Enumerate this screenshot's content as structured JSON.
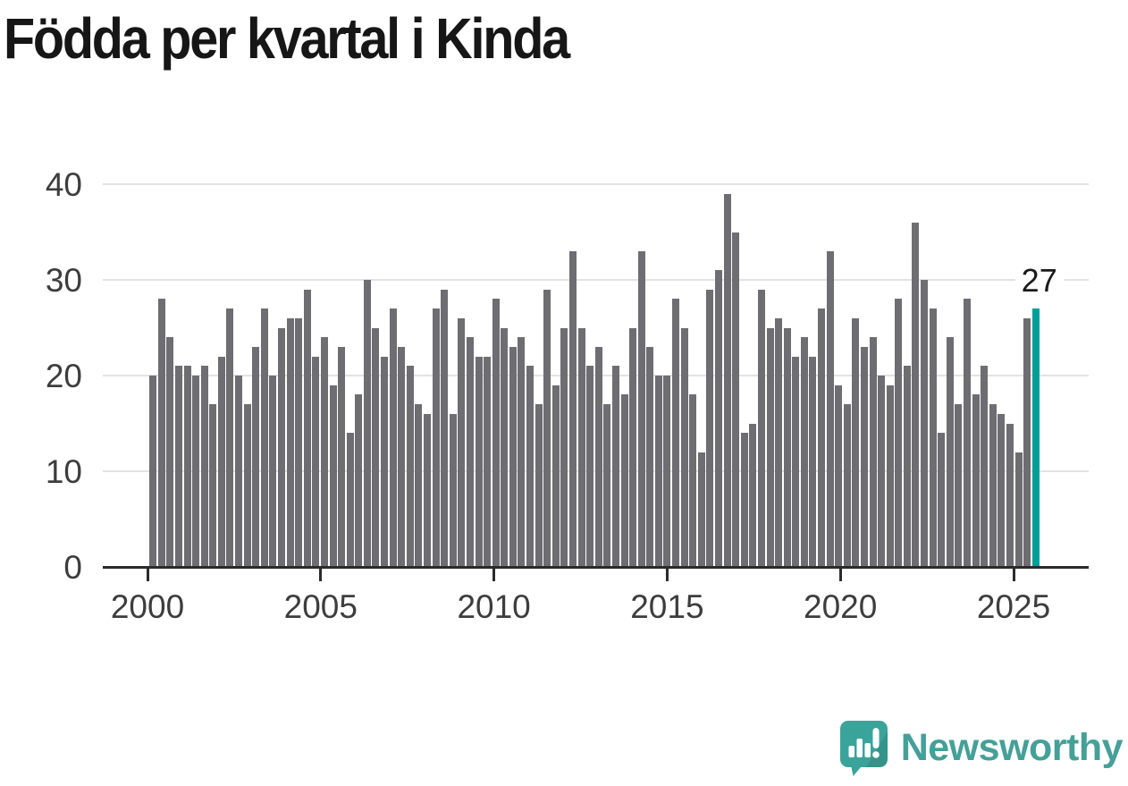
{
  "title": "Födda per kvartal i Kinda",
  "chart_data": {
    "type": "bar",
    "title": "Födda per kvartal i Kinda",
    "frequency": "quarterly",
    "start_period": "2000-Q1",
    "end_period": "2025-Q4",
    "xlabel": "",
    "ylabel": "",
    "ylim": [
      0,
      40
    ],
    "grid": "horizontal",
    "x_tick_labels": [
      "2000",
      "2005",
      "2010",
      "2015",
      "2020",
      "2025"
    ],
    "y_ticks": [
      0,
      10,
      20,
      30,
      40
    ],
    "bar_color": "#6d6d72",
    "series": [
      {
        "name": "Födda per kvartal",
        "values": [
          20,
          28,
          24,
          21,
          21,
          20,
          21,
          17,
          22,
          27,
          20,
          17,
          23,
          27,
          20,
          25,
          26,
          26,
          29,
          22,
          24,
          19,
          23,
          14,
          18,
          30,
          25,
          22,
          27,
          23,
          21,
          17,
          16,
          27,
          29,
          16,
          26,
          24,
          22,
          22,
          28,
          25,
          23,
          24,
          21,
          17,
          29,
          19,
          25,
          33,
          25,
          21,
          23,
          17,
          21,
          18,
          25,
          33,
          23,
          20,
          20,
          28,
          25,
          18,
          12,
          29,
          31,
          39,
          35,
          14,
          15,
          29,
          25,
          26,
          25,
          22,
          24,
          22,
          27,
          33,
          19,
          17,
          26,
          23,
          24,
          20,
          19,
          28,
          21,
          36,
          30,
          27,
          14,
          24,
          17,
          28,
          18,
          21,
          17,
          16,
          15,
          12,
          26,
          27
        ]
      }
    ],
    "highlight": {
      "index": 103,
      "period": "2025-Q4",
      "value": 27,
      "label": "27",
      "color": "#009e99"
    }
  },
  "branding": {
    "logo_text": "Newsworthy",
    "logo_color": "#44a098",
    "icon": "newsworthy-speech-bubble-chart-icon",
    "icon_color": "#3ba49a"
  }
}
